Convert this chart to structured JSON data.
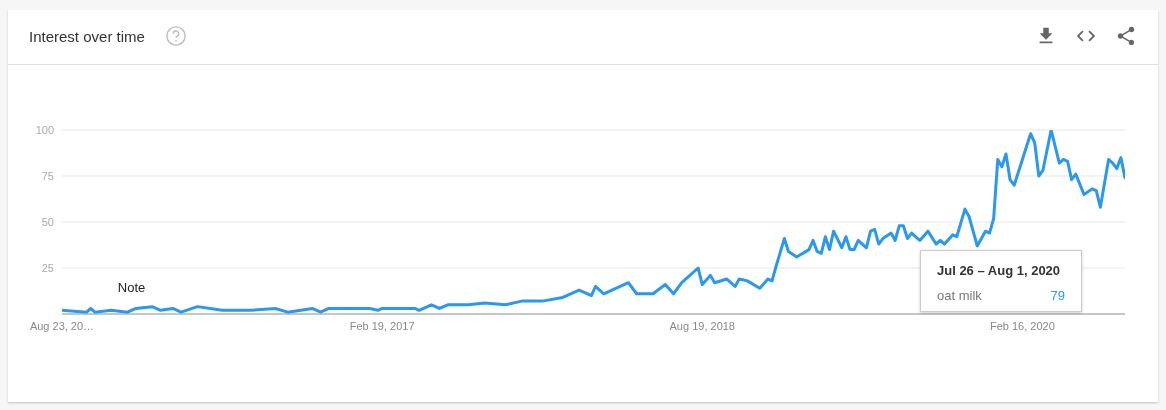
{
  "chart_data": {
    "type": "line",
    "title": "Interest over time",
    "x": [
      "2015-08-23",
      "2015-10-04",
      "2015-10-11",
      "2015-10-18",
      "2015-11-15",
      "2015-12-13",
      "2015-12-27",
      "2016-01-24",
      "2016-02-07",
      "2016-02-28",
      "2016-03-13",
      "2016-04-10",
      "2016-05-22",
      "2016-07-10",
      "2016-08-21",
      "2016-09-11",
      "2016-10-23",
      "2016-11-06",
      "2016-11-20",
      "2016-12-25",
      "2017-01-29",
      "2017-02-12",
      "2017-02-19",
      "2017-04-16",
      "2017-04-23",
      "2017-05-14",
      "2017-05-28",
      "2017-06-11",
      "2017-07-16",
      "2017-08-13",
      "2017-09-17",
      "2017-10-15",
      "2017-11-19",
      "2017-12-24",
      "2018-01-21",
      "2018-02-11",
      "2018-02-18",
      "2018-03-04",
      "2018-04-15",
      "2018-04-29",
      "2018-05-27",
      "2018-06-17",
      "2018-07-01",
      "2018-07-15",
      "2018-08-12",
      "2018-08-19",
      "2018-09-02",
      "2018-09-09",
      "2018-09-30",
      "2018-10-14",
      "2018-10-21",
      "2018-11-04",
      "2018-11-25",
      "2018-12-09",
      "2018-12-16",
      "2018-12-23",
      "2019-01-06",
      "2019-01-13",
      "2019-01-27",
      "2019-02-17",
      "2019-02-24",
      "2019-03-03",
      "2019-03-10",
      "2019-03-17",
      "2019-03-24",
      "2019-03-31",
      "2019-04-14",
      "2019-04-21",
      "2019-04-28",
      "2019-05-05",
      "2019-05-12",
      "2019-05-26",
      "2019-06-02",
      "2019-06-09",
      "2019-06-16",
      "2019-06-23",
      "2019-07-07",
      "2019-07-14",
      "2019-07-21",
      "2019-07-28",
      "2019-08-04",
      "2019-08-11",
      "2019-08-25",
      "2019-09-08",
      "2019-09-22",
      "2019-09-29",
      "2019-10-06",
      "2019-10-20",
      "2019-10-27",
      "2019-11-10",
      "2019-11-17",
      "2019-12-01",
      "2019-12-15",
      "2019-12-22",
      "2019-12-29",
      "2020-01-05",
      "2020-01-12",
      "2020-01-19",
      "2020-01-26",
      "2020-02-02",
      "2020-03-01",
      "2020-03-08",
      "2020-03-15",
      "2020-03-22",
      "2020-04-05",
      "2020-04-19",
      "2020-04-26",
      "2020-05-03",
      "2020-05-10",
      "2020-05-17",
      "2020-05-31",
      "2020-06-14",
      "2020-06-21",
      "2020-06-28",
      "2020-07-12",
      "2020-07-19",
      "2020-07-26",
      "2020-08-02",
      "2020-08-09"
    ],
    "series": [
      {
        "name": "oat milk",
        "color": "#2b98f0",
        "values": [
          2,
          1,
          3,
          1,
          2,
          1,
          3,
          4,
          2,
          3,
          1,
          4,
          2,
          2,
          3,
          1,
          3,
          1,
          3,
          3,
          3,
          2,
          3,
          3,
          2,
          5,
          3,
          5,
          5,
          6,
          5,
          7,
          7,
          9,
          13,
          10,
          15,
          11,
          17,
          11,
          11,
          16,
          11,
          17,
          25,
          16,
          21,
          17,
          19,
          15,
          19,
          18,
          14,
          19,
          18,
          26,
          41,
          34,
          31,
          35,
          40,
          34,
          33,
          42,
          35,
          45,
          36,
          42,
          35,
          35,
          40,
          36,
          45,
          46,
          38,
          41,
          44,
          40,
          48,
          48,
          41,
          44,
          40,
          45,
          38,
          40,
          38,
          43,
          42,
          57,
          53,
          37,
          45,
          44,
          52,
          84,
          80,
          87,
          73,
          70,
          98,
          93,
          75,
          78,
          100,
          82,
          84,
          83,
          73,
          76,
          65,
          68,
          67,
          58,
          84,
          82,
          79,
          85,
          74
        ],
        "value_labels": [
          null,
          null,
          null,
          null,
          null,
          null,
          null,
          null,
          null,
          null,
          null,
          null,
          null,
          null,
          null,
          null,
          null,
          null,
          null,
          null,
          null,
          null,
          null,
          null,
          null,
          null,
          null,
          null,
          null,
          null,
          null,
          null,
          null,
          null,
          null,
          null,
          null,
          null,
          null,
          null,
          null,
          null,
          null,
          null,
          null,
          null,
          null,
          null,
          null,
          null,
          null,
          null,
          null,
          null,
          null,
          null,
          null,
          null,
          null,
          null,
          null,
          null,
          null,
          null,
          null,
          null,
          null,
          null,
          null,
          null,
          null,
          null,
          null,
          null,
          null,
          null,
          null,
          null,
          null,
          null,
          null,
          null,
          null,
          null,
          null,
          null,
          null,
          null,
          null,
          null,
          null,
          null,
          null,
          null,
          null,
          null,
          null,
          null,
          null,
          null,
          null,
          null,
          null,
          null,
          null,
          null,
          null,
          null,
          null,
          null,
          null,
          null,
          null,
          null,
          null,
          null,
          null,
          null,
          null
        ]
      }
    ],
    "xlim": [
      "2015-08-23",
      "2020-08-09"
    ],
    "xticks": [
      {
        "value": "2015-08-23",
        "label": "Aug 23, 20…"
      },
      {
        "value": "2017-02-19",
        "label": "Feb 19, 2017"
      },
      {
        "value": "2018-08-19",
        "label": "Aug 19, 2018"
      },
      {
        "value": "2020-02-16",
        "label": "Feb 16, 2020"
      }
    ],
    "ylim": [
      0,
      100
    ],
    "yticks": [
      25,
      50,
      75,
      100
    ],
    "grid": "y",
    "annotations": [
      {
        "text": "Note",
        "x": "2015-12-20",
        "y": 2
      },
      "Jul 26 – Aug 1, 2020",
      "79"
    ]
  }
}
